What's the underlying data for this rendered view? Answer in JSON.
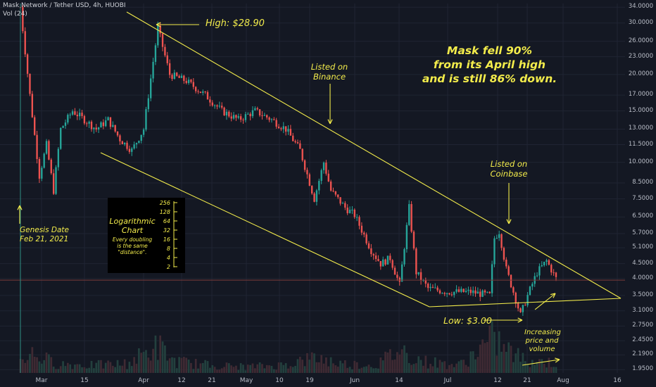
{
  "header": {
    "symbol": "Mask Network / Tether USD, 4h, HUOBI",
    "volume": "Vol (24)"
  },
  "theme": {
    "background": "#141823",
    "up_color": "#26a69a",
    "down_color": "#ef5350",
    "annotation_color": "#f3ec4b",
    "grid_color": "#1f2433"
  },
  "chart_data": {
    "type": "candlestick",
    "scale": "log",
    "grid": true,
    "y_axis_ticks": [
      "34.0000",
      "30.0000",
      "26.0000",
      "23.0000",
      "20.0000",
      "17.0000",
      "15.0000",
      "13.0000",
      "11.5000",
      "10.0000",
      "8.5000",
      "7.5000",
      "6.5000",
      "5.7000",
      "5.1000",
      "4.5000",
      "4.0000",
      "3.5000",
      "3.1000",
      "2.7500",
      "2.4500",
      "2.1900",
      "1.9500"
    ],
    "x_axis_ticks": [
      "Mar",
      "15",
      "Apr",
      "12",
      "21",
      "May",
      "10",
      "19",
      "Jun",
      "14",
      "Jul",
      "12",
      "21",
      "Aug",
      "16"
    ],
    "current_price": "3.95",
    "price_path": [
      [
        0,
        34
      ],
      [
        4,
        17
      ],
      [
        8,
        9
      ],
      [
        11,
        11.5
      ],
      [
        14,
        8
      ],
      [
        17,
        13
      ],
      [
        22,
        15
      ],
      [
        27,
        14
      ],
      [
        32,
        13
      ],
      [
        37,
        14
      ],
      [
        42,
        12
      ],
      [
        47,
        11
      ],
      [
        52,
        13
      ],
      [
        58,
        28.9
      ],
      [
        63,
        20
      ],
      [
        70,
        19
      ],
      [
        78,
        17
      ],
      [
        85,
        15
      ],
      [
        92,
        14
      ],
      [
        99,
        15
      ],
      [
        106,
        14
      ],
      [
        112,
        13
      ],
      [
        118,
        11
      ],
      [
        124,
        7.5
      ],
      [
        128,
        10
      ],
      [
        131,
        8
      ],
      [
        137,
        7
      ],
      [
        141,
        6.6
      ],
      [
        148,
        5.0
      ],
      [
        152,
        4.5
      ],
      [
        156,
        4.7
      ],
      [
        160,
        3.8
      ],
      [
        164,
        7
      ],
      [
        167,
        4.2
      ],
      [
        172,
        3.7
      ],
      [
        180,
        3.6
      ],
      [
        190,
        3.6
      ],
      [
        198,
        3.5
      ],
      [
        200,
        5.5
      ],
      [
        202,
        5.8
      ],
      [
        205,
        4.3
      ],
      [
        208,
        3.6
      ],
      [
        211,
        3.0
      ],
      [
        214,
        3.5
      ],
      [
        218,
        4.2
      ],
      [
        222,
        4.6
      ],
      [
        226,
        4.0
      ]
    ],
    "volume_path": [
      [
        0,
        0.18
      ],
      [
        5,
        0.25
      ],
      [
        15,
        0.12
      ],
      [
        30,
        0.1
      ],
      [
        45,
        0.12
      ],
      [
        58,
        0.35
      ],
      [
        65,
        0.15
      ],
      [
        80,
        0.1
      ],
      [
        95,
        0.08
      ],
      [
        110,
        0.1
      ],
      [
        125,
        0.2
      ],
      [
        135,
        0.12
      ],
      [
        150,
        0.1
      ],
      [
        160,
        0.3
      ],
      [
        170,
        0.15
      ],
      [
        185,
        0.1
      ],
      [
        200,
        0.45
      ],
      [
        205,
        0.3
      ],
      [
        212,
        0.18
      ],
      [
        220,
        0.15
      ],
      [
        226,
        0.12
      ]
    ],
    "annotations": {
      "high": "High: $28.90",
      "low": "Low: $3.00",
      "binance": [
        "Listed on",
        "Binance"
      ],
      "coinbase": [
        "Listed on",
        "Coinbase"
      ],
      "genesis": [
        "Genesis Date",
        "Feb 21, 2021"
      ],
      "headline": [
        "Mask fell 90%",
        "from its April high",
        "and is still 86% down."
      ],
      "increasing": [
        "Increasing",
        "price and",
        "volume"
      ]
    },
    "log_legend": {
      "title": [
        "Logarithmic",
        "Chart"
      ],
      "caption": [
        "Every doubling",
        "is the same",
        "\"distance\"."
      ],
      "scale": [
        "256",
        "128",
        "64",
        "32",
        "16",
        "8",
        "4",
        "2"
      ]
    }
  }
}
